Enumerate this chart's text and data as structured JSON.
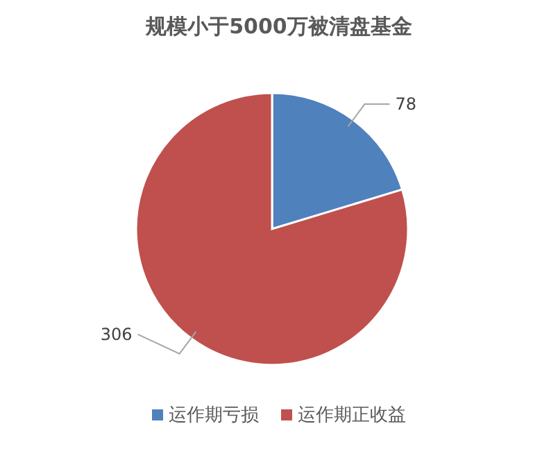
{
  "chart_data": {
    "type": "pie",
    "title": "规模小于5000万被清盘基金",
    "categories": [
      "运作期亏损",
      "运作期正收益"
    ],
    "values": [
      78,
      306
    ],
    "colors": [
      "#4f81bd",
      "#c0504d"
    ],
    "data_labels": true,
    "legend": "bottom"
  }
}
